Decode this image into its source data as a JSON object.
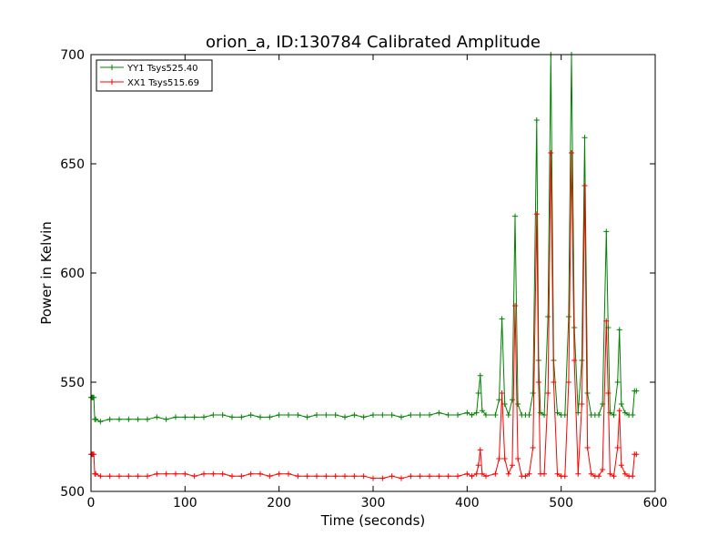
{
  "chart_data": {
    "type": "line",
    "title": "orion_a, ID:130784 Calibrated Amplitude",
    "xlabel": "Time (seconds)",
    "ylabel": "Power in Kelvin",
    "xlim": [
      0,
      600
    ],
    "ylim": [
      500,
      700
    ],
    "xticks": [
      0,
      100,
      200,
      300,
      400,
      500,
      600
    ],
    "yticks": [
      500,
      550,
      600,
      650,
      700
    ],
    "grid": false,
    "legend_position": "top-left",
    "series": [
      {
        "name": "YY1 Tsys525.40",
        "color": "#008000",
        "x": [
          0,
          1,
          2,
          3,
          4,
          5,
          10,
          20,
          30,
          40,
          50,
          60,
          70,
          80,
          90,
          100,
          110,
          120,
          130,
          140,
          150,
          160,
          170,
          180,
          190,
          200,
          210,
          220,
          230,
          240,
          250,
          260,
          270,
          280,
          290,
          300,
          310,
          320,
          330,
          340,
          350,
          360,
          370,
          380,
          390,
          400,
          405,
          410,
          412,
          414,
          416,
          420,
          430,
          434,
          437,
          440,
          444,
          448,
          451,
          454,
          458,
          462,
          466,
          470,
          474,
          476,
          478,
          482,
          486,
          489,
          492,
          496,
          500,
          504,
          508,
          511,
          514,
          518,
          522,
          525,
          528,
          532,
          536,
          540,
          544,
          548,
          550,
          552,
          556,
          560,
          562,
          564,
          568,
          572,
          576,
          578,
          580
        ],
        "y": [
          543,
          543,
          543,
          543,
          533,
          533,
          532,
          533,
          533,
          533,
          533,
          533,
          534,
          533,
          534,
          534,
          534,
          534,
          535,
          535,
          534,
          534,
          535,
          534,
          534,
          535,
          535,
          535,
          534,
          535,
          535,
          535,
          534,
          535,
          534,
          535,
          535,
          535,
          534,
          535,
          535,
          535,
          536,
          535,
          535,
          536,
          535,
          536,
          545,
          553,
          537,
          535,
          535,
          542,
          579,
          540,
          535,
          542,
          626,
          540,
          535,
          535,
          535,
          545,
          670,
          560,
          536,
          535,
          580,
          700,
          560,
          536,
          535,
          535,
          580,
          700,
          575,
          536,
          560,
          662,
          545,
          535,
          535,
          535,
          540,
          619,
          575,
          536,
          535,
          550,
          574,
          540,
          536,
          535,
          535,
          546,
          546
        ]
      },
      {
        "name": "XX1 Tsys515.69",
        "color": "#ff0000",
        "x": [
          0,
          1,
          2,
          3,
          4,
          5,
          10,
          20,
          30,
          40,
          50,
          60,
          70,
          80,
          90,
          100,
          110,
          120,
          130,
          140,
          150,
          160,
          170,
          180,
          190,
          200,
          210,
          220,
          230,
          240,
          250,
          260,
          270,
          280,
          290,
          300,
          310,
          320,
          330,
          340,
          350,
          360,
          370,
          380,
          390,
          400,
          405,
          410,
          412,
          414,
          416,
          420,
          430,
          434,
          437,
          440,
          444,
          448,
          451,
          454,
          458,
          462,
          466,
          470,
          474,
          476,
          478,
          482,
          486,
          489,
          492,
          496,
          500,
          504,
          508,
          511,
          514,
          518,
          522,
          525,
          528,
          532,
          536,
          540,
          544,
          548,
          550,
          552,
          556,
          560,
          562,
          564,
          568,
          572,
          576,
          578,
          580
        ],
        "y": [
          517,
          517,
          517,
          517,
          508,
          508,
          507,
          507,
          507,
          507,
          507,
          507,
          508,
          508,
          508,
          508,
          507,
          508,
          508,
          508,
          507,
          507,
          508,
          508,
          507,
          508,
          508,
          507,
          507,
          507,
          507,
          507,
          507,
          507,
          507,
          506,
          506,
          507,
          506,
          507,
          507,
          507,
          507,
          507,
          507,
          508,
          507,
          508,
          512,
          519,
          508,
          507,
          508,
          515,
          545,
          515,
          508,
          512,
          585,
          515,
          507,
          507,
          508,
          520,
          627,
          550,
          508,
          508,
          545,
          655,
          550,
          508,
          507,
          507,
          550,
          655,
          560,
          508,
          540,
          640,
          520,
          508,
          507,
          507,
          510,
          578,
          545,
          508,
          507,
          520,
          537,
          512,
          508,
          507,
          507,
          517,
          517
        ]
      }
    ]
  }
}
